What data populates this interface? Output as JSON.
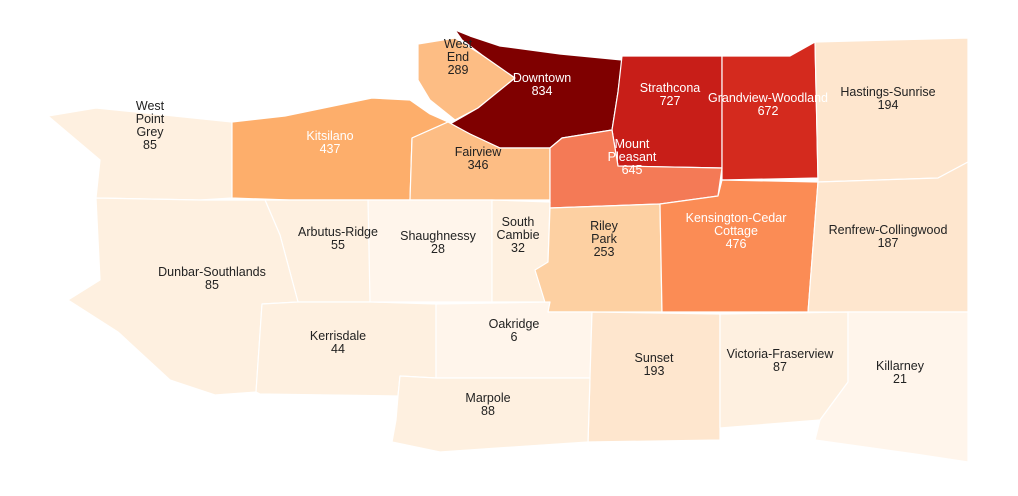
{
  "map": {
    "type": "choropleth",
    "color_scale": [
      "#fff5eb",
      "#fee6ce",
      "#fdd0a2",
      "#fdae6b",
      "#fd8d3c",
      "#f16913",
      "#d94801",
      "#a50f15",
      "#7f0000"
    ],
    "neighbourhoods": [
      {
        "id": "west-end",
        "name": "West End",
        "value": 289
      },
      {
        "id": "downtown",
        "name": "Downtown",
        "value": 834
      },
      {
        "id": "strathcona",
        "name": "Strathcona",
        "value": 727
      },
      {
        "id": "grandview-woodland",
        "name": "Grandview-Woodland",
        "value": 672
      },
      {
        "id": "hastings-sunrise",
        "name": "Hastings-Sunrise",
        "value": 194
      },
      {
        "id": "west-point-grey",
        "name": "West Point Grey",
        "value": 85
      },
      {
        "id": "kitsilano",
        "name": "Kitsilano",
        "value": 437
      },
      {
        "id": "fairview",
        "name": "Fairview",
        "value": 346
      },
      {
        "id": "mount-pleasant",
        "name": "Mount Pleasant",
        "value": 645
      },
      {
        "id": "arbutus-ridge",
        "name": "Arbutus-Ridge",
        "value": 55
      },
      {
        "id": "shaughnessy",
        "name": "Shaughnessy",
        "value": 28
      },
      {
        "id": "south-cambie",
        "name": "South Cambie",
        "value": 32
      },
      {
        "id": "riley-park",
        "name": "Riley Park",
        "value": 253
      },
      {
        "id": "kensington-cedar-cottage",
        "name": "Kensington-Cedar Cottage",
        "value": 476
      },
      {
        "id": "renfrew-collingwood",
        "name": "Renfrew-Collingwood",
        "value": 187
      },
      {
        "id": "dunbar-southlands",
        "name": "Dunbar-Southlands",
        "value": 85
      },
      {
        "id": "kerrisdale",
        "name": "Kerrisdale",
        "value": 44
      },
      {
        "id": "oakridge",
        "name": "Oakridge",
        "value": 6
      },
      {
        "id": "sunset",
        "name": "Sunset",
        "value": 193
      },
      {
        "id": "victoria-fraserview",
        "name": "Victoria-Fraserview",
        "value": 87
      },
      {
        "id": "killarney",
        "name": "Killarney",
        "value": 21
      },
      {
        "id": "marpole",
        "name": "Marpole",
        "value": 88
      }
    ]
  }
}
